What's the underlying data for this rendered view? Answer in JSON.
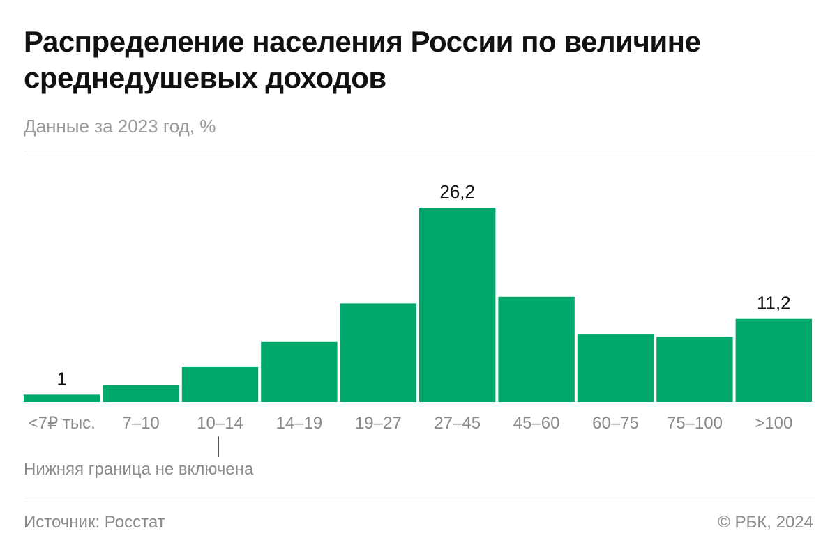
{
  "header": {
    "title": "Распределение населения России по величине среднедушевых доходов",
    "subtitle": "Данные за 2023 год, %"
  },
  "chart_data": {
    "type": "bar",
    "title": "Распределение населения России по величине среднедушевых доходов",
    "subtitle": "Данные за 2023 год, %",
    "categories": [
      "<7₽ тыс.",
      "7–10",
      "10–14",
      "14–19",
      "19–27",
      "27–45",
      "45–60",
      "60–75",
      "75–100",
      ">100"
    ],
    "values": [
      1.0,
      2.3,
      4.8,
      8.1,
      13.3,
      26.2,
      14.2,
      9.1,
      8.8,
      11.2
    ],
    "data_labels": [
      "1",
      "",
      "",
      "",
      "",
      "26,2",
      "",
      "",
      "",
      "11,2"
    ],
    "ylim": [
      0,
      26.2
    ],
    "grid": false,
    "bar_color": "#00a86b",
    "annotations": [
      {
        "category": "10–14",
        "text": "Нижняя граница не включена"
      }
    ]
  },
  "footer": {
    "source": "Источник: Росстат",
    "copyright": "© РБК, 2024"
  }
}
